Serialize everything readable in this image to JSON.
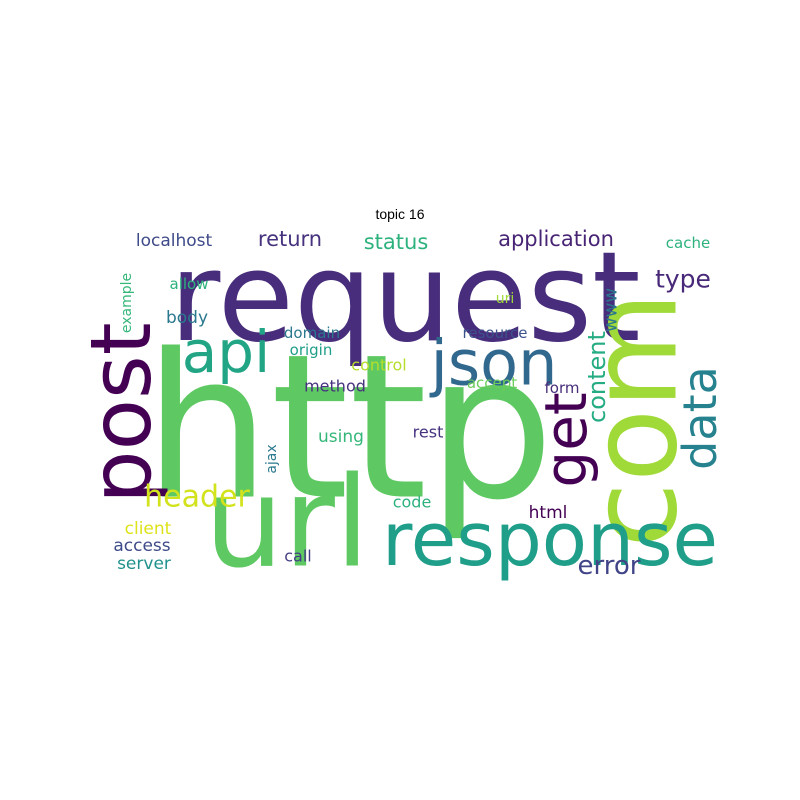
{
  "title": "topic 16",
  "words": [
    {
      "text": "http",
      "color": "#5ec962",
      "rotate": false
    },
    {
      "text": "request",
      "color": "#472d7b",
      "rotate": false
    },
    {
      "text": "url",
      "color": "#5ec962",
      "rotate": false
    },
    {
      "text": "com",
      "color": "#a0da39",
      "rotate": true
    },
    {
      "text": "response",
      "color": "#1f9e89",
      "rotate": false
    },
    {
      "text": "post",
      "color": "#440154",
      "rotate": true
    },
    {
      "text": "json",
      "color": "#31688e",
      "rotate": false
    },
    {
      "text": "api",
      "color": "#21a585",
      "rotate": false
    },
    {
      "text": "get",
      "color": "#440154",
      "rotate": true
    },
    {
      "text": "data",
      "color": "#26828e",
      "rotate": true
    },
    {
      "text": "header",
      "color": "#d2e21b",
      "rotate": false
    },
    {
      "text": "content",
      "color": "#25ac82",
      "rotate": true
    },
    {
      "text": "error",
      "color": "#414487",
      "rotate": false
    },
    {
      "text": "application",
      "color": "#482475",
      "rotate": false
    },
    {
      "text": "type",
      "color": "#482878",
      "rotate": false
    },
    {
      "text": "return",
      "color": "#46327e",
      "rotate": false
    },
    {
      "text": "status",
      "color": "#2db27d",
      "rotate": false
    },
    {
      "text": "www",
      "color": "#2a788e",
      "rotate": true
    },
    {
      "text": "html",
      "color": "#440154",
      "rotate": false
    },
    {
      "text": "localhost",
      "color": "#3e4a89",
      "rotate": false
    },
    {
      "text": "cache",
      "color": "#2db27d",
      "rotate": false
    },
    {
      "text": "body",
      "color": "#2a788e",
      "rotate": false
    },
    {
      "text": "allow",
      "color": "#2db27d",
      "rotate": false
    },
    {
      "text": "example",
      "color": "#35b779",
      "rotate": true
    },
    {
      "text": "uri",
      "color": "#a0da39",
      "rotate": false
    },
    {
      "text": "resource",
      "color": "#3b528b",
      "rotate": false
    },
    {
      "text": "domain",
      "color": "#2a788e",
      "rotate": false
    },
    {
      "text": "origin",
      "color": "#1f9e89",
      "rotate": false
    },
    {
      "text": "control",
      "color": "#b5de2b",
      "rotate": false
    },
    {
      "text": "method",
      "color": "#46327e",
      "rotate": false
    },
    {
      "text": "accept",
      "color": "#6ccd5a",
      "rotate": false
    },
    {
      "text": "form",
      "color": "#472c7a",
      "rotate": false
    },
    {
      "text": "using",
      "color": "#35b779",
      "rotate": false
    },
    {
      "text": "rest",
      "color": "#46327e",
      "rotate": false
    },
    {
      "text": "ajax",
      "color": "#2a788e",
      "rotate": true
    },
    {
      "text": "code",
      "color": "#2db27d",
      "rotate": false
    },
    {
      "text": "client",
      "color": "#dde318",
      "rotate": false
    },
    {
      "text": "access",
      "color": "#3e4a89",
      "rotate": false
    },
    {
      "text": "call",
      "color": "#433e85",
      "rotate": false
    },
    {
      "text": "server",
      "color": "#21918c",
      "rotate": false
    }
  ]
}
